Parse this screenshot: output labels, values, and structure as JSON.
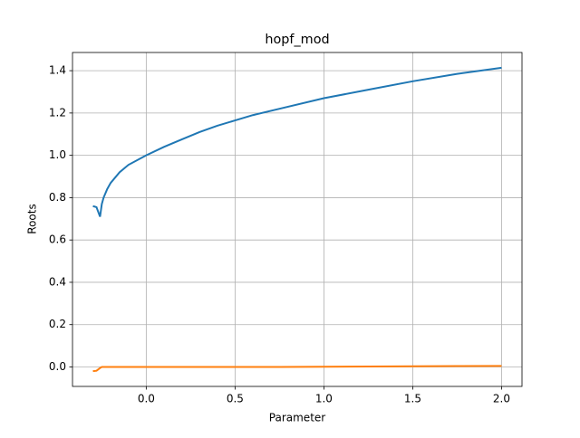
{
  "chart_data": {
    "type": "line",
    "title": "hopf_mod",
    "x_label": "Parameter",
    "y_label": "Roots",
    "x": [
      -0.3,
      -0.28,
      -0.26,
      -0.25,
      -0.24,
      -0.22,
      -0.2,
      -0.15,
      -0.1,
      0,
      0.1,
      0.2,
      0.3,
      0.4,
      0.5,
      0.6,
      0.75,
      1.0,
      1.25,
      1.5,
      1.75,
      2.0
    ],
    "series": [
      {
        "color": "#1f77b4",
        "values": [
          0.76,
          0.755,
          0.71,
          0.77,
          0.8,
          0.84,
          0.87,
          0.92,
          0.955,
          1.0,
          1.04,
          1.075,
          1.11,
          1.14,
          1.165,
          1.19,
          1.22,
          1.27,
          1.31,
          1.35,
          1.385,
          1.414
        ]
      },
      {
        "color": "#ff7f0e",
        "values": [
          -0.02,
          -0.018,
          -0.005,
          0,
          0,
          0,
          0,
          0,
          0,
          0,
          0,
          0,
          0,
          0,
          0,
          0,
          0,
          0.001,
          0.002,
          0.003,
          0.004,
          0.005
        ]
      }
    ],
    "xlim": [
      -0.415,
      2.115
    ],
    "xticks": [
      {
        "value": 0,
        "label": "0.0"
      },
      {
        "value": 0.5,
        "label": "0.5"
      },
      {
        "value": 1,
        "label": "1.0"
      },
      {
        "value": 1.5,
        "label": "1.5"
      },
      {
        "value": 2,
        "label": "2.0"
      }
    ],
    "ylim": [
      -0.092,
      1.486
    ],
    "yticks": [
      {
        "value": 0,
        "label": "0.0"
      },
      {
        "value": 0.2,
        "label": "0.2"
      },
      {
        "value": 0.4,
        "label": "0.4"
      },
      {
        "value": 0.6,
        "label": "0.6"
      },
      {
        "value": 0.8,
        "label": "0.8"
      },
      {
        "value": 1,
        "label": "1.0"
      },
      {
        "value": 1.2,
        "label": "1.2"
      },
      {
        "value": 1.4,
        "label": "1.4"
      }
    ],
    "grid": true
  }
}
